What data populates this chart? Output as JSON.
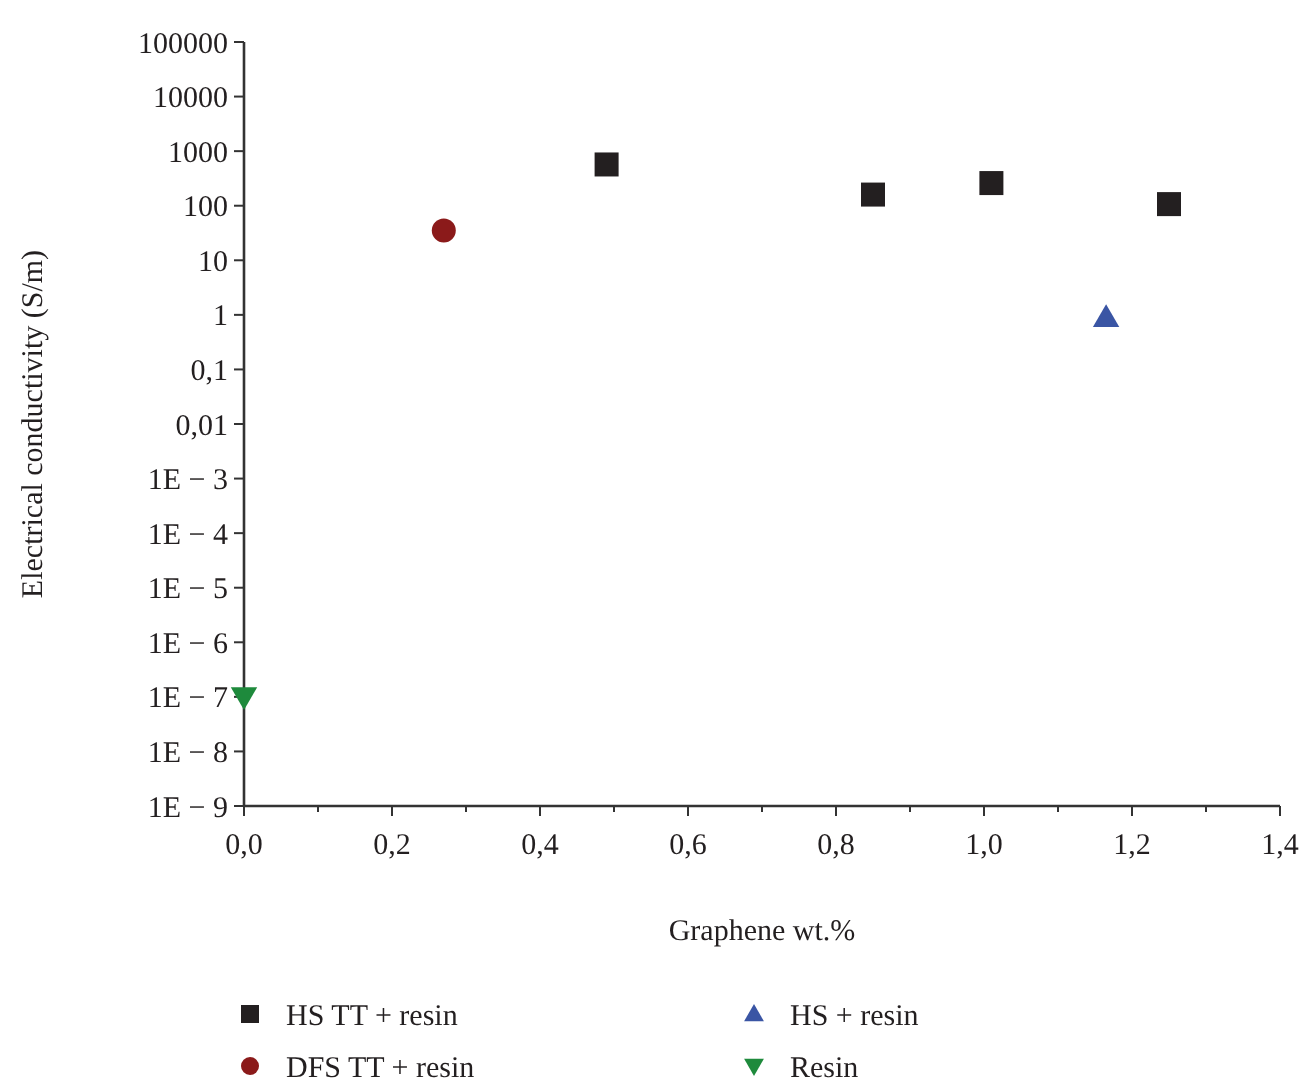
{
  "chart_data": {
    "type": "scatter",
    "xlabel": "Graphene wt.%",
    "ylabel": "Electrical conductivity (S/m)",
    "log": "y",
    "xlim": [
      0,
      1.4
    ],
    "xticks": [
      {
        "value": 0,
        "label": "0,0"
      },
      {
        "value": 0.1,
        "label": null
      },
      {
        "value": 0.2,
        "label": "0,2"
      },
      {
        "value": 0.3,
        "label": null
      },
      {
        "value": 0.4,
        "label": "0,4"
      },
      {
        "value": 0.5,
        "label": null
      },
      {
        "value": 0.6,
        "label": "0,6"
      },
      {
        "value": 0.7,
        "label": null
      },
      {
        "value": 0.8,
        "label": "0,8"
      },
      {
        "value": 0.9,
        "label": null
      },
      {
        "value": 1.0,
        "label": "1,0"
      },
      {
        "value": 1.1,
        "label": null
      },
      {
        "value": 1.2,
        "label": "1,2"
      },
      {
        "value": 1.3,
        "label": null
      },
      {
        "value": 1.4,
        "label": "1,4"
      }
    ],
    "ylim": [
      1e-09,
      100000
    ],
    "yticks": [
      100000,
      10000,
      1000,
      100,
      10,
      1,
      {
        "value": 0.1,
        "label": "0,1"
      },
      {
        "value": 0.01,
        "label": "0,01"
      },
      {
        "value": 0.001,
        "label": "1E − 3"
      },
      {
        "value": 0.0001,
        "label": "1E − 4"
      },
      {
        "value": 1e-05,
        "label": "1E − 5"
      },
      {
        "value": 1e-06,
        "label": "1E − 6"
      },
      {
        "value": 1e-07,
        "label": "1E − 7"
      },
      {
        "value": 1e-08,
        "label": "1E − 8"
      },
      {
        "value": 1e-09,
        "label": "1E − 9"
      }
    ],
    "legend": "bottom",
    "grid": false,
    "series": [
      {
        "name": "HS TT + resin",
        "color": "#231f20",
        "marker": "square",
        "x": [
          0.49,
          0.85,
          1.01,
          1.25
        ],
        "values": [
          570,
          160,
          260,
          107
        ]
      },
      {
        "name": "DFS TT + resin",
        "color": "#8b1a1a",
        "marker": "circle",
        "x": [
          0.27
        ],
        "values": [
          35
        ]
      },
      {
        "name": "HS + resin",
        "color": "#3a55a4",
        "marker": "triangle",
        "x": [
          1.165
        ],
        "values": [
          0.9
        ]
      },
      {
        "name": "Resin",
        "color": "#1e8a3c",
        "marker": "triangle-down",
        "x": [
          0
        ],
        "values": [
          1e-07
        ]
      }
    ]
  }
}
